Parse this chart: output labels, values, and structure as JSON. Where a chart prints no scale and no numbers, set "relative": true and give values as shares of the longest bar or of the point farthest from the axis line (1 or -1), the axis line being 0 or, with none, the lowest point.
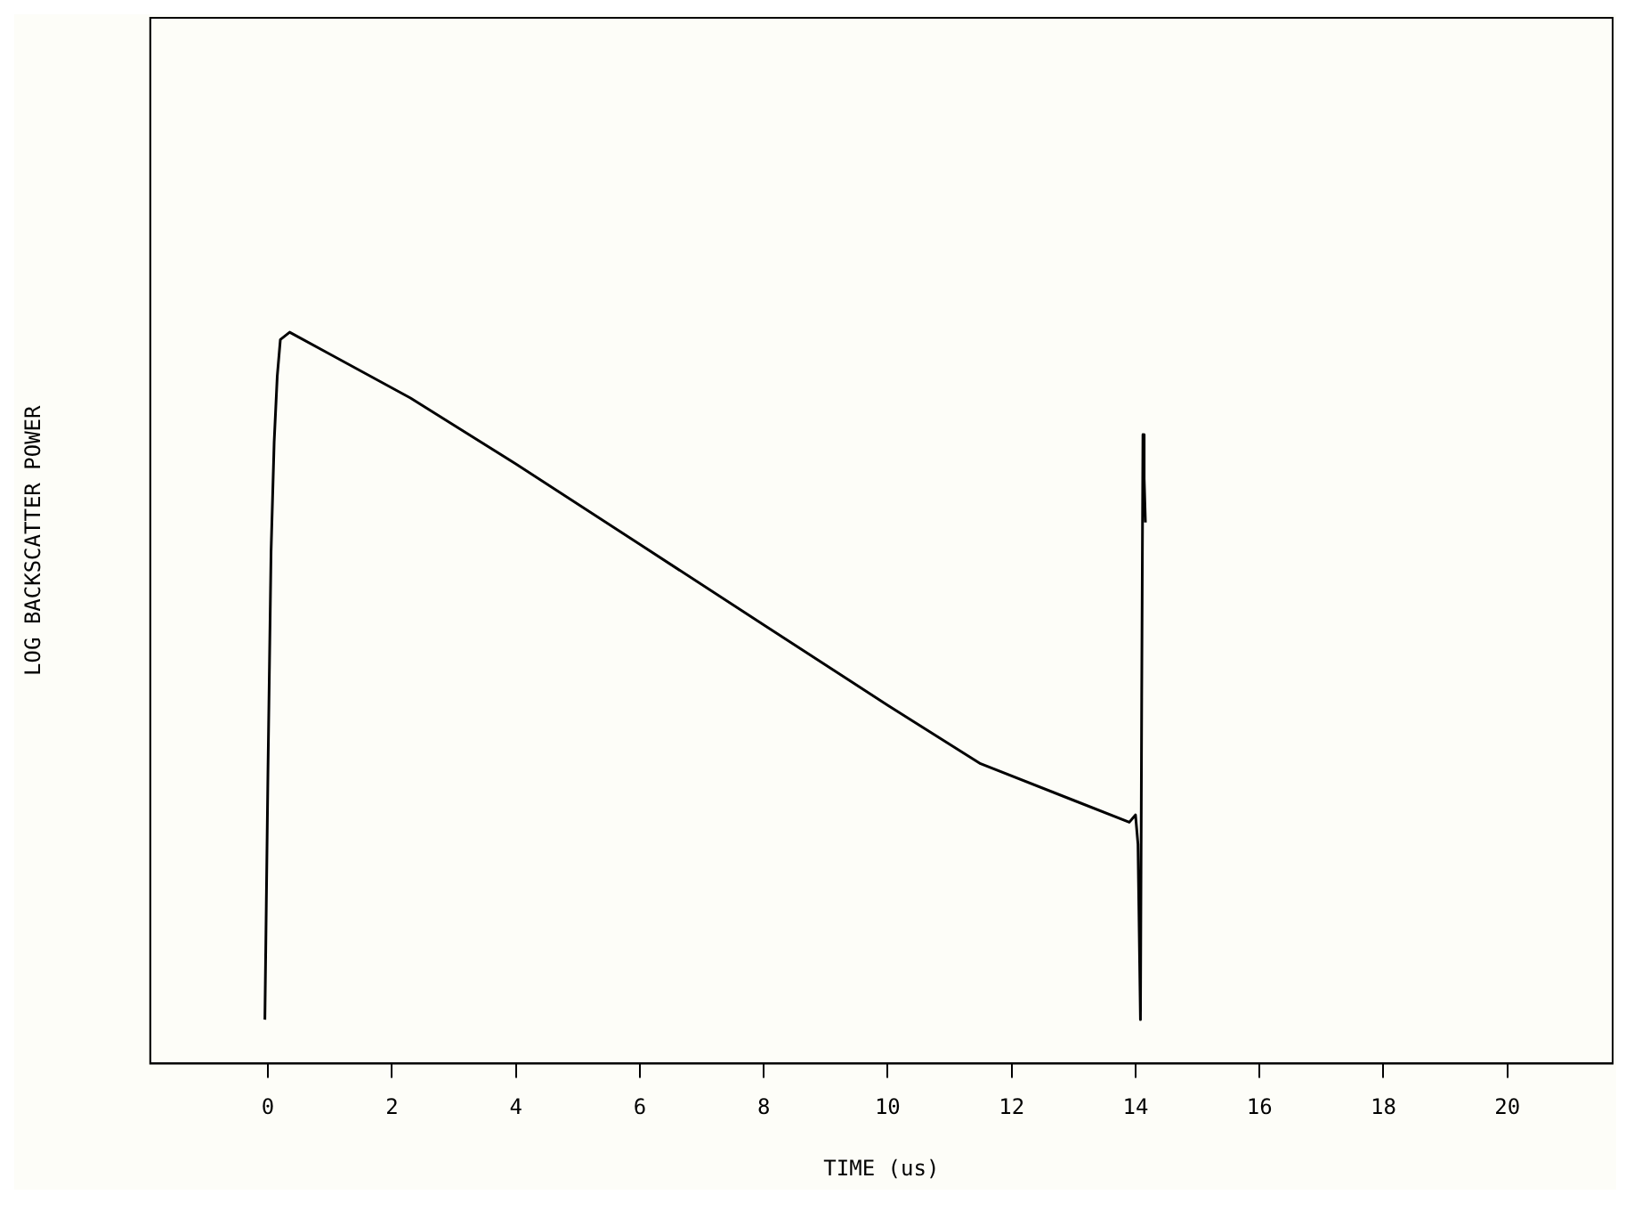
{
  "chart_data": {
    "type": "line",
    "xlabel": "TIME (us)",
    "ylabel": "LOG BACKSCATTER POWER",
    "relative": true,
    "xlim": [
      -1.9,
      21.7
    ],
    "xticks": [
      0,
      2,
      4,
      6,
      8,
      10,
      12,
      14,
      16,
      18,
      20
    ],
    "x": [
      -0.05,
      0.0,
      0.05,
      0.1,
      0.15,
      0.2,
      0.35,
      1.0,
      2.3,
      4,
      6,
      8,
      10,
      11.5,
      13.0,
      13.9,
      14.0,
      14.04,
      14.08,
      14.1,
      14.12,
      14.14,
      14.16
    ],
    "series": [
      {
        "color": "#000000",
        "values": [
          0.06,
          0.4,
          0.7,
          0.85,
          0.94,
          0.99,
          1.0,
          0.97,
          0.91,
          0.82,
          0.71,
          0.6,
          0.49,
          0.41,
          0.36,
          0.33,
          0.34,
          0.3,
          0.06,
          0.5,
          0.86,
          0.8,
          0.74
        ]
      }
    ],
    "grid": false,
    "legend": false,
    "marker": "none",
    "line_style": "solid"
  }
}
